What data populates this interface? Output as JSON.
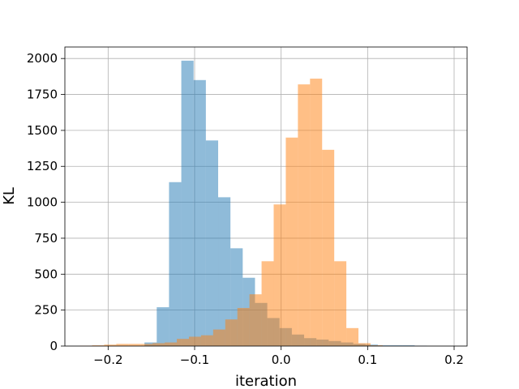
{
  "chart_data": {
    "type": "histogram",
    "title": "",
    "xlabel": "iteration",
    "ylabel": "KL",
    "xlim": [
      -0.25,
      0.215
    ],
    "ylim": [
      0,
      2080
    ],
    "grid": true,
    "legend": "none",
    "xticks": [
      -0.2,
      -0.1,
      0.0,
      0.1,
      0.2
    ],
    "xtick_labels": [
      "−0.2",
      "−0.1",
      "0.0",
      "0.1",
      "0.2"
    ],
    "yticks": [
      0,
      250,
      500,
      750,
      1000,
      1250,
      1500,
      1750,
      2000
    ],
    "ytick_labels": [
      "0",
      "250",
      "500",
      "750",
      "1000",
      "1250",
      "1500",
      "1750",
      "2000"
    ],
    "series": [
      {
        "color": "#1f77b4",
        "opacity": 0.5,
        "bin_edges": [
          -0.158,
          -0.1438,
          -0.1296,
          -0.1154,
          -0.1012,
          -0.087,
          -0.0728,
          -0.0586,
          -0.0444,
          -0.0302,
          -0.016,
          -0.0018,
          0.0124,
          0.0266,
          0.0408,
          0.055,
          0.0692,
          0.0834,
          0.0976,
          0.1118,
          0.126,
          0.1402,
          0.1544,
          0.1686
        ],
        "counts": [
          25,
          270,
          1140,
          1985,
          1850,
          1430,
          1035,
          680,
          475,
          300,
          195,
          125,
          80,
          55,
          45,
          35,
          25,
          15,
          10,
          5,
          5,
          5,
          2
        ]
      },
      {
        "color": "#ff7f0e",
        "opacity": 0.5,
        "bin_edges": [
          -0.2326,
          -0.2186,
          -0.2046,
          -0.1906,
          -0.1766,
          -0.1626,
          -0.1486,
          -0.1346,
          -0.1206,
          -0.1066,
          -0.0926,
          -0.0786,
          -0.0646,
          -0.0506,
          -0.0366,
          -0.0226,
          -0.0086,
          0.0054,
          0.0194,
          0.0334,
          0.0474,
          0.0614,
          0.0754,
          0.0894,
          0.1034,
          0.1174
        ],
        "counts": [
          2,
          5,
          10,
          15,
          15,
          15,
          20,
          25,
          50,
          65,
          75,
          115,
          185,
          265,
          360,
          590,
          985,
          1450,
          1820,
          1860,
          1365,
          590,
          125,
          20,
          5
        ]
      }
    ]
  }
}
